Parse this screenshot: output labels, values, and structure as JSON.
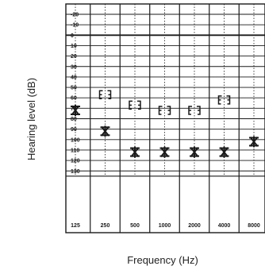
{
  "chart_data": {
    "type": "scatter",
    "title": "",
    "xlabel": "Frequency (Hz)",
    "ylabel": "Hearing level (dB)",
    "x_ticks": [
      "125",
      "250",
      "500",
      "1000",
      "2000",
      "4000",
      "8000"
    ],
    "y_ticks": [
      -20,
      -10,
      0,
      10,
      20,
      30,
      40,
      50,
      60,
      70,
      80,
      90,
      100,
      110,
      120,
      130
    ],
    "ylim": [
      -20,
      130
    ],
    "y_inverted": true,
    "grid": true,
    "series": [
      {
        "symbol": "crossed-star",
        "color": "#1a1a1a",
        "points": [
          {
            "x": "125",
            "y": 72
          },
          {
            "x": "250",
            "y": 92
          },
          {
            "x": "500",
            "y": 112
          },
          {
            "x": "1000",
            "y": 112
          },
          {
            "x": "2000",
            "y": 112
          },
          {
            "x": "4000",
            "y": 112
          },
          {
            "x": "8000",
            "y": 102
          }
        ]
      },
      {
        "symbol": "bracket-pair",
        "color": "#1a1a1a",
        "points": [
          {
            "x": "250",
            "y": 57
          },
          {
            "x": "500",
            "y": 67
          },
          {
            "x": "1000",
            "y": 72
          },
          {
            "x": "2000",
            "y": 72
          },
          {
            "x": "4000",
            "y": 62
          }
        ]
      }
    ]
  }
}
